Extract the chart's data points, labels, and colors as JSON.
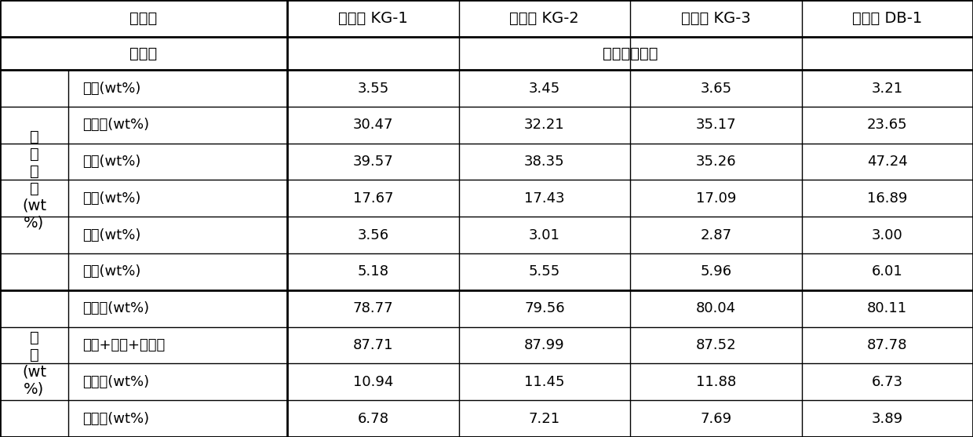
{
  "headers": [
    "催化剂",
    "催化剂 KG-1",
    "催化剂 KG-2",
    "催化剂 KG-3",
    "催化剂 DB-1"
  ],
  "row2_left": "原料油",
  "row2_right": "某炼厂原料油",
  "section1_label": "产\n物\n分\n布\n(wt\n%)",
  "section2_label": "收\n率\n(wt\n%)",
  "section1_rows": [
    [
      "干气(wt%)",
      "3.55",
      "3.45",
      "3.65",
      "3.21"
    ],
    [
      "液化气(wt%)",
      "30.47",
      "32.21",
      "35.17",
      "23.65"
    ],
    [
      "汽油(wt%)",
      "39.57",
      "38.35",
      "35.26",
      "47.24"
    ],
    [
      "柴油(wt%)",
      "17.67",
      "17.43",
      "17.09",
      "16.89"
    ],
    [
      "重油(wt%)",
      "3.56",
      "3.01",
      "2.87",
      "3.00"
    ],
    [
      "焦炭(wt%)",
      "5.18",
      "5.55",
      "5.96",
      "6.01"
    ]
  ],
  "section2_rows": [
    [
      "转化率(wt%)",
      "78.77",
      "79.56",
      "80.04",
      "80.11"
    ],
    [
      "汽油+柴油+液化气",
      "87.71",
      "87.99",
      "87.52",
      "87.78"
    ],
    [
      "异丁烯(wt%)",
      "10.94",
      "11.45",
      "11.88",
      "6.73"
    ],
    [
      "异戊烯(wt%)",
      "6.78",
      "7.21",
      "7.69",
      "3.89"
    ]
  ],
  "background_color": "#ffffff",
  "border_color": "#000000",
  "text_color": "#000000"
}
